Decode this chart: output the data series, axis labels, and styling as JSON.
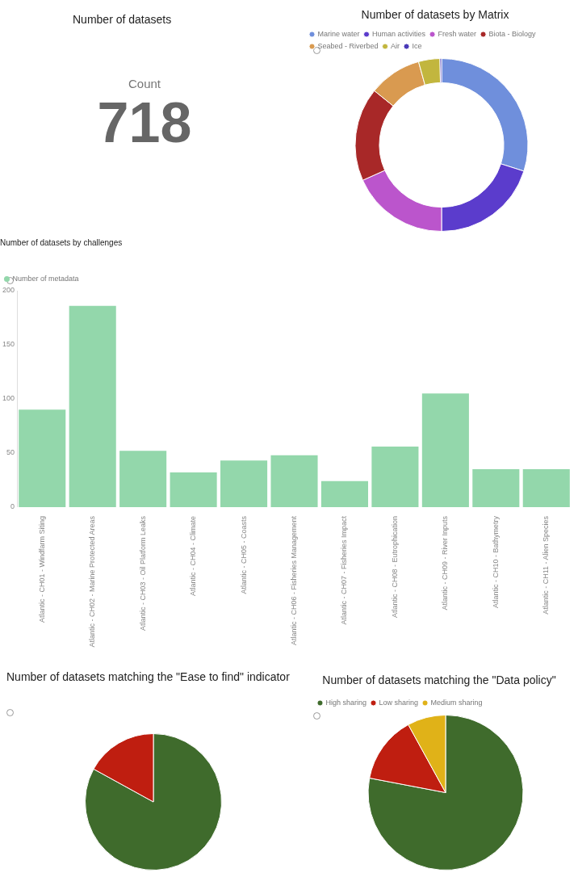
{
  "chart_data": [
    {
      "type": "other",
      "title": "Number of datasets",
      "categories": [
        "Count"
      ],
      "values": [
        718
      ],
      "data_labels": true
    },
    {
      "type": "donut",
      "title": "Number of datasets by Matrix",
      "categories": [
        "Marine water",
        "Human activities",
        "Fresh water",
        "Biota - Biology",
        "Seabed - Riverbed",
        "Air",
        "Ice"
      ],
      "values": [
        29.9,
        20.1,
        18.3,
        17.5,
        9.9,
        4.0,
        0.3
      ],
      "colors": [
        "#6f8fdc",
        "#5b3ccc",
        "#bb55cc",
        "#a82828",
        "#d99a50",
        "#c2b63e",
        "#4a3ab8"
      ],
      "legend": "top left"
    },
    {
      "type": "bar",
      "title": "Number of datasets by challenges",
      "categories": [
        "Atlantic - CH01 - Windfarm Siting",
        "Atlantic - CH02 - Marine Protected Areas",
        "Atlantic - CH03 - Oil Platform Leaks",
        "Atlantic - CH04 - Climate",
        "Atlantic - CH05 - Coasts",
        "Atlantic - CH06 - Fisheries Management",
        "Atlantic - CH07 - Fisheries Impact",
        "Atlantic - CH08 - Eutrophication",
        "Atlantic - CH09 - River Inputs",
        "Atlantic - CH10 - Bathymetry",
        "Atlantic - CH11 - Alien Species"
      ],
      "series": [
        {
          "name": "Number of metadata",
          "color": "#93d7ab",
          "values": [
            90,
            186,
            52,
            32,
            43,
            48,
            24,
            56,
            105,
            35,
            35
          ]
        }
      ],
      "ylim": [
        0,
        200
      ],
      "yticks": [
        0,
        50,
        100,
        150,
        200
      ],
      "grid": false,
      "legend": "top left"
    },
    {
      "type": "pie",
      "title": "Number of datasets matching the \"Ease to find\" indicator",
      "categories": [
        null,
        null
      ],
      "values": [
        83,
        17
      ],
      "colors": [
        "#3f6b2c",
        "#bf1e10"
      ]
    },
    {
      "type": "pie",
      "title": "Number of datasets matching the \"Data policy\"",
      "categories": [
        "High sharing",
        "Low sharing",
        "Medium sharing"
      ],
      "values": [
        78,
        14,
        8
      ],
      "colors": [
        "#3f6b2c",
        "#bf1e10",
        "#e0b218"
      ],
      "legend": "top left"
    }
  ]
}
